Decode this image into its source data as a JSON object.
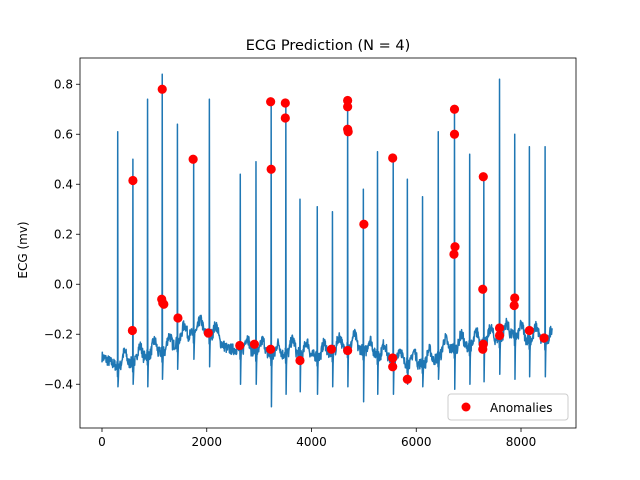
{
  "chart_data": {
    "type": "line",
    "title": "ECG Prediction (N = 4)",
    "xlabel": "",
    "ylabel": "ECG (mv)",
    "xlim": [
      -420,
      9050
    ],
    "ylim": [
      -0.575,
      0.905
    ],
    "x_ticks": [
      0,
      2000,
      4000,
      6000,
      8000
    ],
    "x_tick_labels": [
      "0",
      "2000",
      "4000",
      "6000",
      "8000"
    ],
    "y_ticks": [
      -0.4,
      -0.2,
      0.0,
      0.2,
      0.4,
      0.6,
      0.8
    ],
    "y_tick_labels": [
      "−0.4",
      "−0.2",
      "0.0",
      "0.2",
      "0.4",
      "0.6",
      "0.8"
    ],
    "grid": false,
    "legend": {
      "placement": "lower-right",
      "entries": [
        "Anomalies"
      ]
    },
    "series": [
      {
        "kind": "line",
        "color": "#1f77b4",
        "baseline_anchors": [
          [
            0,
            -0.29
          ],
          [
            300,
            -0.33
          ],
          [
            600,
            -0.31
          ],
          [
            900,
            -0.28
          ],
          [
            1200,
            -0.27
          ],
          [
            1500,
            -0.22
          ],
          [
            1800,
            -0.19
          ],
          [
            2100,
            -0.2
          ],
          [
            2400,
            -0.26
          ],
          [
            2700,
            -0.26
          ],
          [
            3000,
            -0.27
          ],
          [
            3300,
            -0.29
          ],
          [
            3600,
            -0.27
          ],
          [
            3900,
            -0.28
          ],
          [
            4200,
            -0.29
          ],
          [
            4500,
            -0.26
          ],
          [
            4800,
            -0.25
          ],
          [
            5100,
            -0.27
          ],
          [
            5400,
            -0.29
          ],
          [
            5700,
            -0.31
          ],
          [
            6000,
            -0.32
          ],
          [
            6300,
            -0.31
          ],
          [
            6600,
            -0.26
          ],
          [
            6900,
            -0.25
          ],
          [
            7200,
            -0.24
          ],
          [
            7500,
            -0.22
          ],
          [
            7800,
            -0.2
          ],
          [
            8100,
            -0.22
          ],
          [
            8400,
            -0.22
          ],
          [
            8600,
            -0.23
          ]
        ],
        "beats": [
          [
            300,
            0.61,
            -0.41
          ],
          [
            590,
            0.5,
            -0.4
          ],
          [
            870,
            0.74,
            -0.41
          ],
          [
            1150,
            0.84,
            -0.38
          ],
          [
            1440,
            0.64,
            -0.34
          ],
          [
            1750,
            0.5,
            -0.3
          ],
          [
            2050,
            0.74,
            -0.33
          ],
          [
            2640,
            0.44,
            -0.4
          ],
          [
            2940,
            0.49,
            -0.4
          ],
          [
            3230,
            0.73,
            -0.49
          ],
          [
            3510,
            0.73,
            -0.44
          ],
          [
            3780,
            0.34,
            -0.43
          ],
          [
            4110,
            0.31,
            -0.44
          ],
          [
            4400,
            0.29,
            -0.41
          ],
          [
            4690,
            0.74,
            -0.41
          ],
          [
            4990,
            0.38,
            -0.47
          ],
          [
            5260,
            0.53,
            -0.44
          ],
          [
            5560,
            0.51,
            -0.44
          ],
          [
            5830,
            0.42,
            -0.4
          ],
          [
            6120,
            0.35,
            -0.41
          ],
          [
            6420,
            0.61,
            -0.38
          ],
          [
            6730,
            0.7,
            -0.42
          ],
          [
            7020,
            0.52,
            -0.4
          ],
          [
            7290,
            0.43,
            -0.39
          ],
          [
            7590,
            0.82,
            -0.36
          ],
          [
            7880,
            0.6,
            -0.38
          ],
          [
            8160,
            0.55,
            -0.37
          ],
          [
            8460,
            0.55,
            -0.37
          ]
        ]
      },
      {
        "kind": "scatter",
        "name": "Anomalies",
        "color": "#ff0000",
        "points": [
          [
            590,
            0.415
          ],
          [
            580,
            -0.185
          ],
          [
            1150,
            0.78
          ],
          [
            1140,
            -0.06
          ],
          [
            1160,
            -0.075
          ],
          [
            1180,
            -0.08
          ],
          [
            1450,
            -0.135
          ],
          [
            1740,
            0.5
          ],
          [
            2030,
            -0.195
          ],
          [
            2630,
            -0.245
          ],
          [
            2910,
            -0.24
          ],
          [
            3220,
            0.73
          ],
          [
            3230,
            0.46
          ],
          [
            3220,
            -0.26
          ],
          [
            3500,
            0.725
          ],
          [
            3500,
            0.665
          ],
          [
            3780,
            -0.305
          ],
          [
            4380,
            -0.26
          ],
          [
            4690,
            0.735
          ],
          [
            4690,
            0.71
          ],
          [
            4690,
            0.62
          ],
          [
            4700,
            0.61
          ],
          [
            4690,
            -0.265
          ],
          [
            5000,
            0.24
          ],
          [
            5550,
            0.505
          ],
          [
            5550,
            -0.295
          ],
          [
            5550,
            -0.33
          ],
          [
            5830,
            -0.38
          ],
          [
            6730,
            0.7
          ],
          [
            6730,
            0.6
          ],
          [
            6740,
            0.15
          ],
          [
            6720,
            0.12
          ],
          [
            7280,
            0.43
          ],
          [
            7270,
            -0.02
          ],
          [
            7280,
            -0.24
          ],
          [
            7270,
            -0.26
          ],
          [
            7590,
            -0.175
          ],
          [
            7590,
            -0.205
          ],
          [
            7880,
            -0.055
          ],
          [
            7870,
            -0.085
          ],
          [
            8160,
            -0.185
          ],
          [
            8440,
            -0.215
          ]
        ]
      }
    ]
  }
}
